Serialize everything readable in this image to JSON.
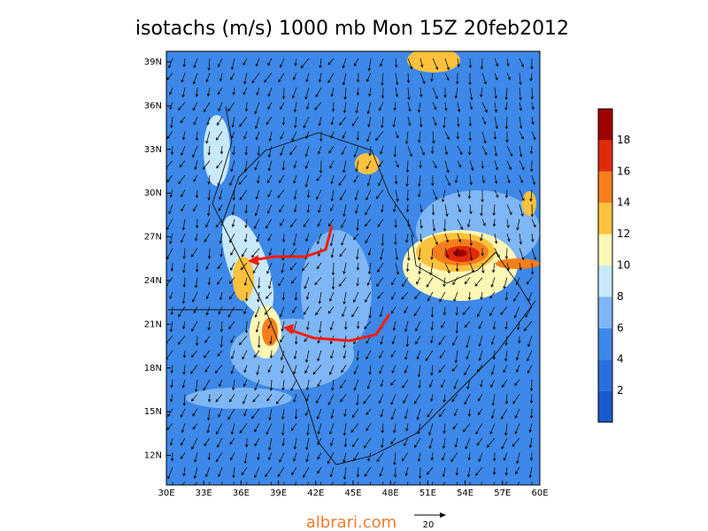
{
  "title": "isotachs (m/s) 1000 mb Mon 15Z 20feb2012",
  "lat_labels": [
    "39N",
    "36N",
    "33N",
    "30N",
    "27N",
    "24N",
    "21N",
    "18N",
    "15N",
    "12N"
  ],
  "lon_labels": [
    "30E",
    "33E",
    "36E",
    "39E",
    "42E",
    "45E",
    "48E",
    "51E",
    "54E",
    "57E",
    "60E"
  ],
  "colorbar_labels": [
    2,
    4,
    6,
    8,
    10,
    12,
    14,
    16,
    18
  ],
  "watermark": "albrari.com",
  "reference_vector": 20
}
